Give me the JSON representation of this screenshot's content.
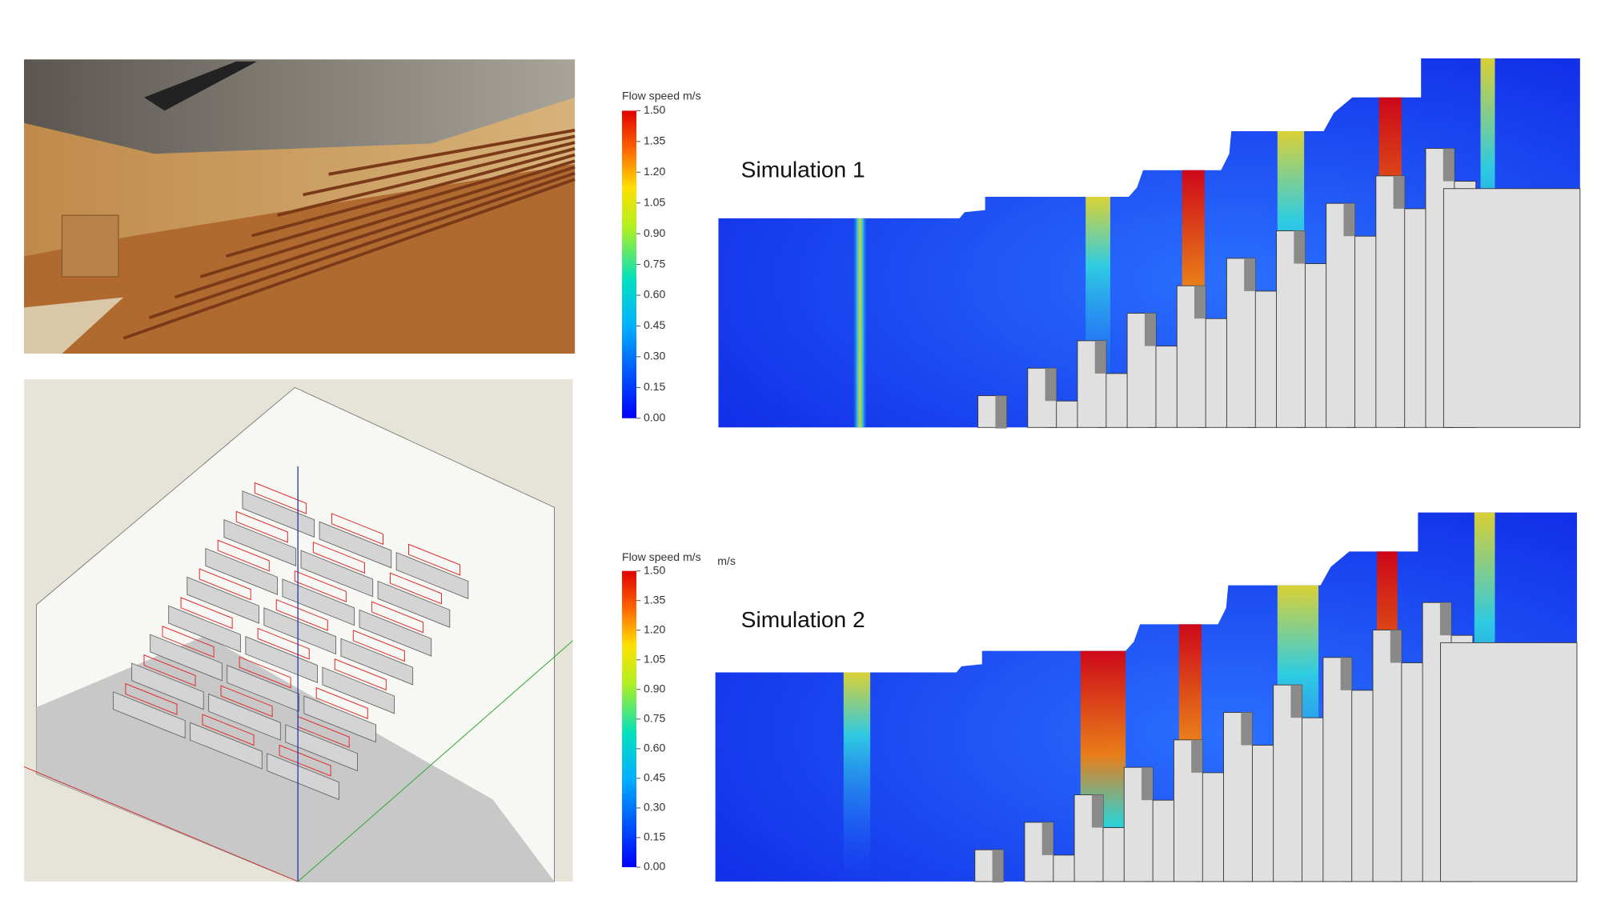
{
  "colorbars": [
    {
      "title": "Flow speed m/s",
      "ticks": [
        "1.50",
        "1.35",
        "1.20",
        "1.05",
        "0.90",
        "0.75",
        "0.60",
        "0.45",
        "0.30",
        "0.15",
        "0.00"
      ]
    },
    {
      "title": "Flow speed m/s",
      "unit": "m/s",
      "ticks": [
        "1.50",
        "1.35",
        "1.20",
        "1.05",
        "0.90",
        "0.75",
        "0.60",
        "0.45",
        "0.30",
        "0.15",
        "0.00"
      ]
    }
  ],
  "panels": [
    {
      "label": "Simulation 1"
    },
    {
      "label": "Simulation 2"
    }
  ]
}
